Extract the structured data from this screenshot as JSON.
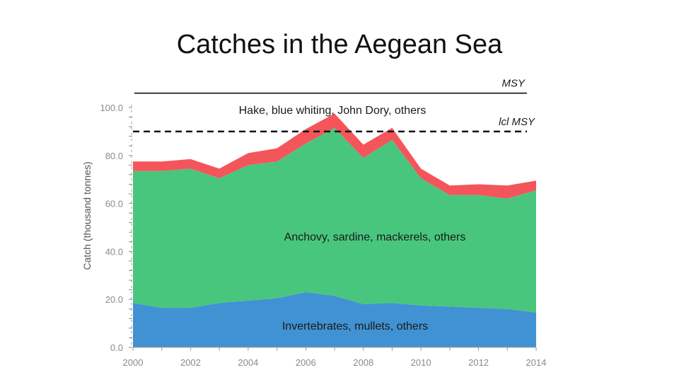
{
  "title": "Catches in the Aegean Sea",
  "chart_data": {
    "type": "area",
    "stacked": true,
    "ylabel": "Catch (thousand tonnes)",
    "xlabel": "",
    "x": [
      2000,
      2001,
      2002,
      2003,
      2004,
      2005,
      2006,
      2007,
      2008,
      2009,
      2010,
      2011,
      2012,
      2013,
      2014
    ],
    "xticks": [
      "2000",
      "2002",
      "2004",
      "2006",
      "2008",
      "2010",
      "2012",
      "2014"
    ],
    "xtick_values": [
      2000,
      2002,
      2004,
      2006,
      2008,
      2010,
      2012,
      2014
    ],
    "yticks": [
      "0.0",
      "20.0",
      "40.0",
      "60.0",
      "80.0",
      "100.0"
    ],
    "ytick_values": [
      0,
      20,
      40,
      60,
      80,
      100
    ],
    "xlim": [
      2000,
      2014
    ],
    "ylim": [
      0,
      100
    ],
    "series": [
      {
        "label": "Invertebrates, mullets, others",
        "color": "#4192d2",
        "values": [
          18.5,
          16.5,
          16.5,
          18.5,
          19.5,
          20.5,
          23.0,
          21.5,
          18.0,
          18.5,
          17.5,
          17.0,
          16.5,
          16.0,
          14.5
        ]
      },
      {
        "label": "Anchovy, sardine, mackerels, others",
        "color": "#48c67e",
        "values": [
          55.0,
          57.0,
          58.0,
          52.0,
          56.5,
          57.0,
          62.0,
          70.0,
          61.0,
          68.0,
          53.0,
          46.5,
          47.0,
          46.0,
          51.0
        ]
      },
      {
        "label": "Hake, blue whiting, John Dory, others",
        "color": "#f4555a",
        "values": [
          4.0,
          4.0,
          4.0,
          4.0,
          5.0,
          5.5,
          6.0,
          6.0,
          5.5,
          5.0,
          4.0,
          4.0,
          4.5,
          5.5,
          4.0
        ]
      }
    ],
    "reference_lines": [
      {
        "label": "MSY",
        "value": 106,
        "style": "solid"
      },
      {
        "label": "lcl MSY",
        "value": 90,
        "style": "dashed"
      }
    ],
    "grid": false
  }
}
